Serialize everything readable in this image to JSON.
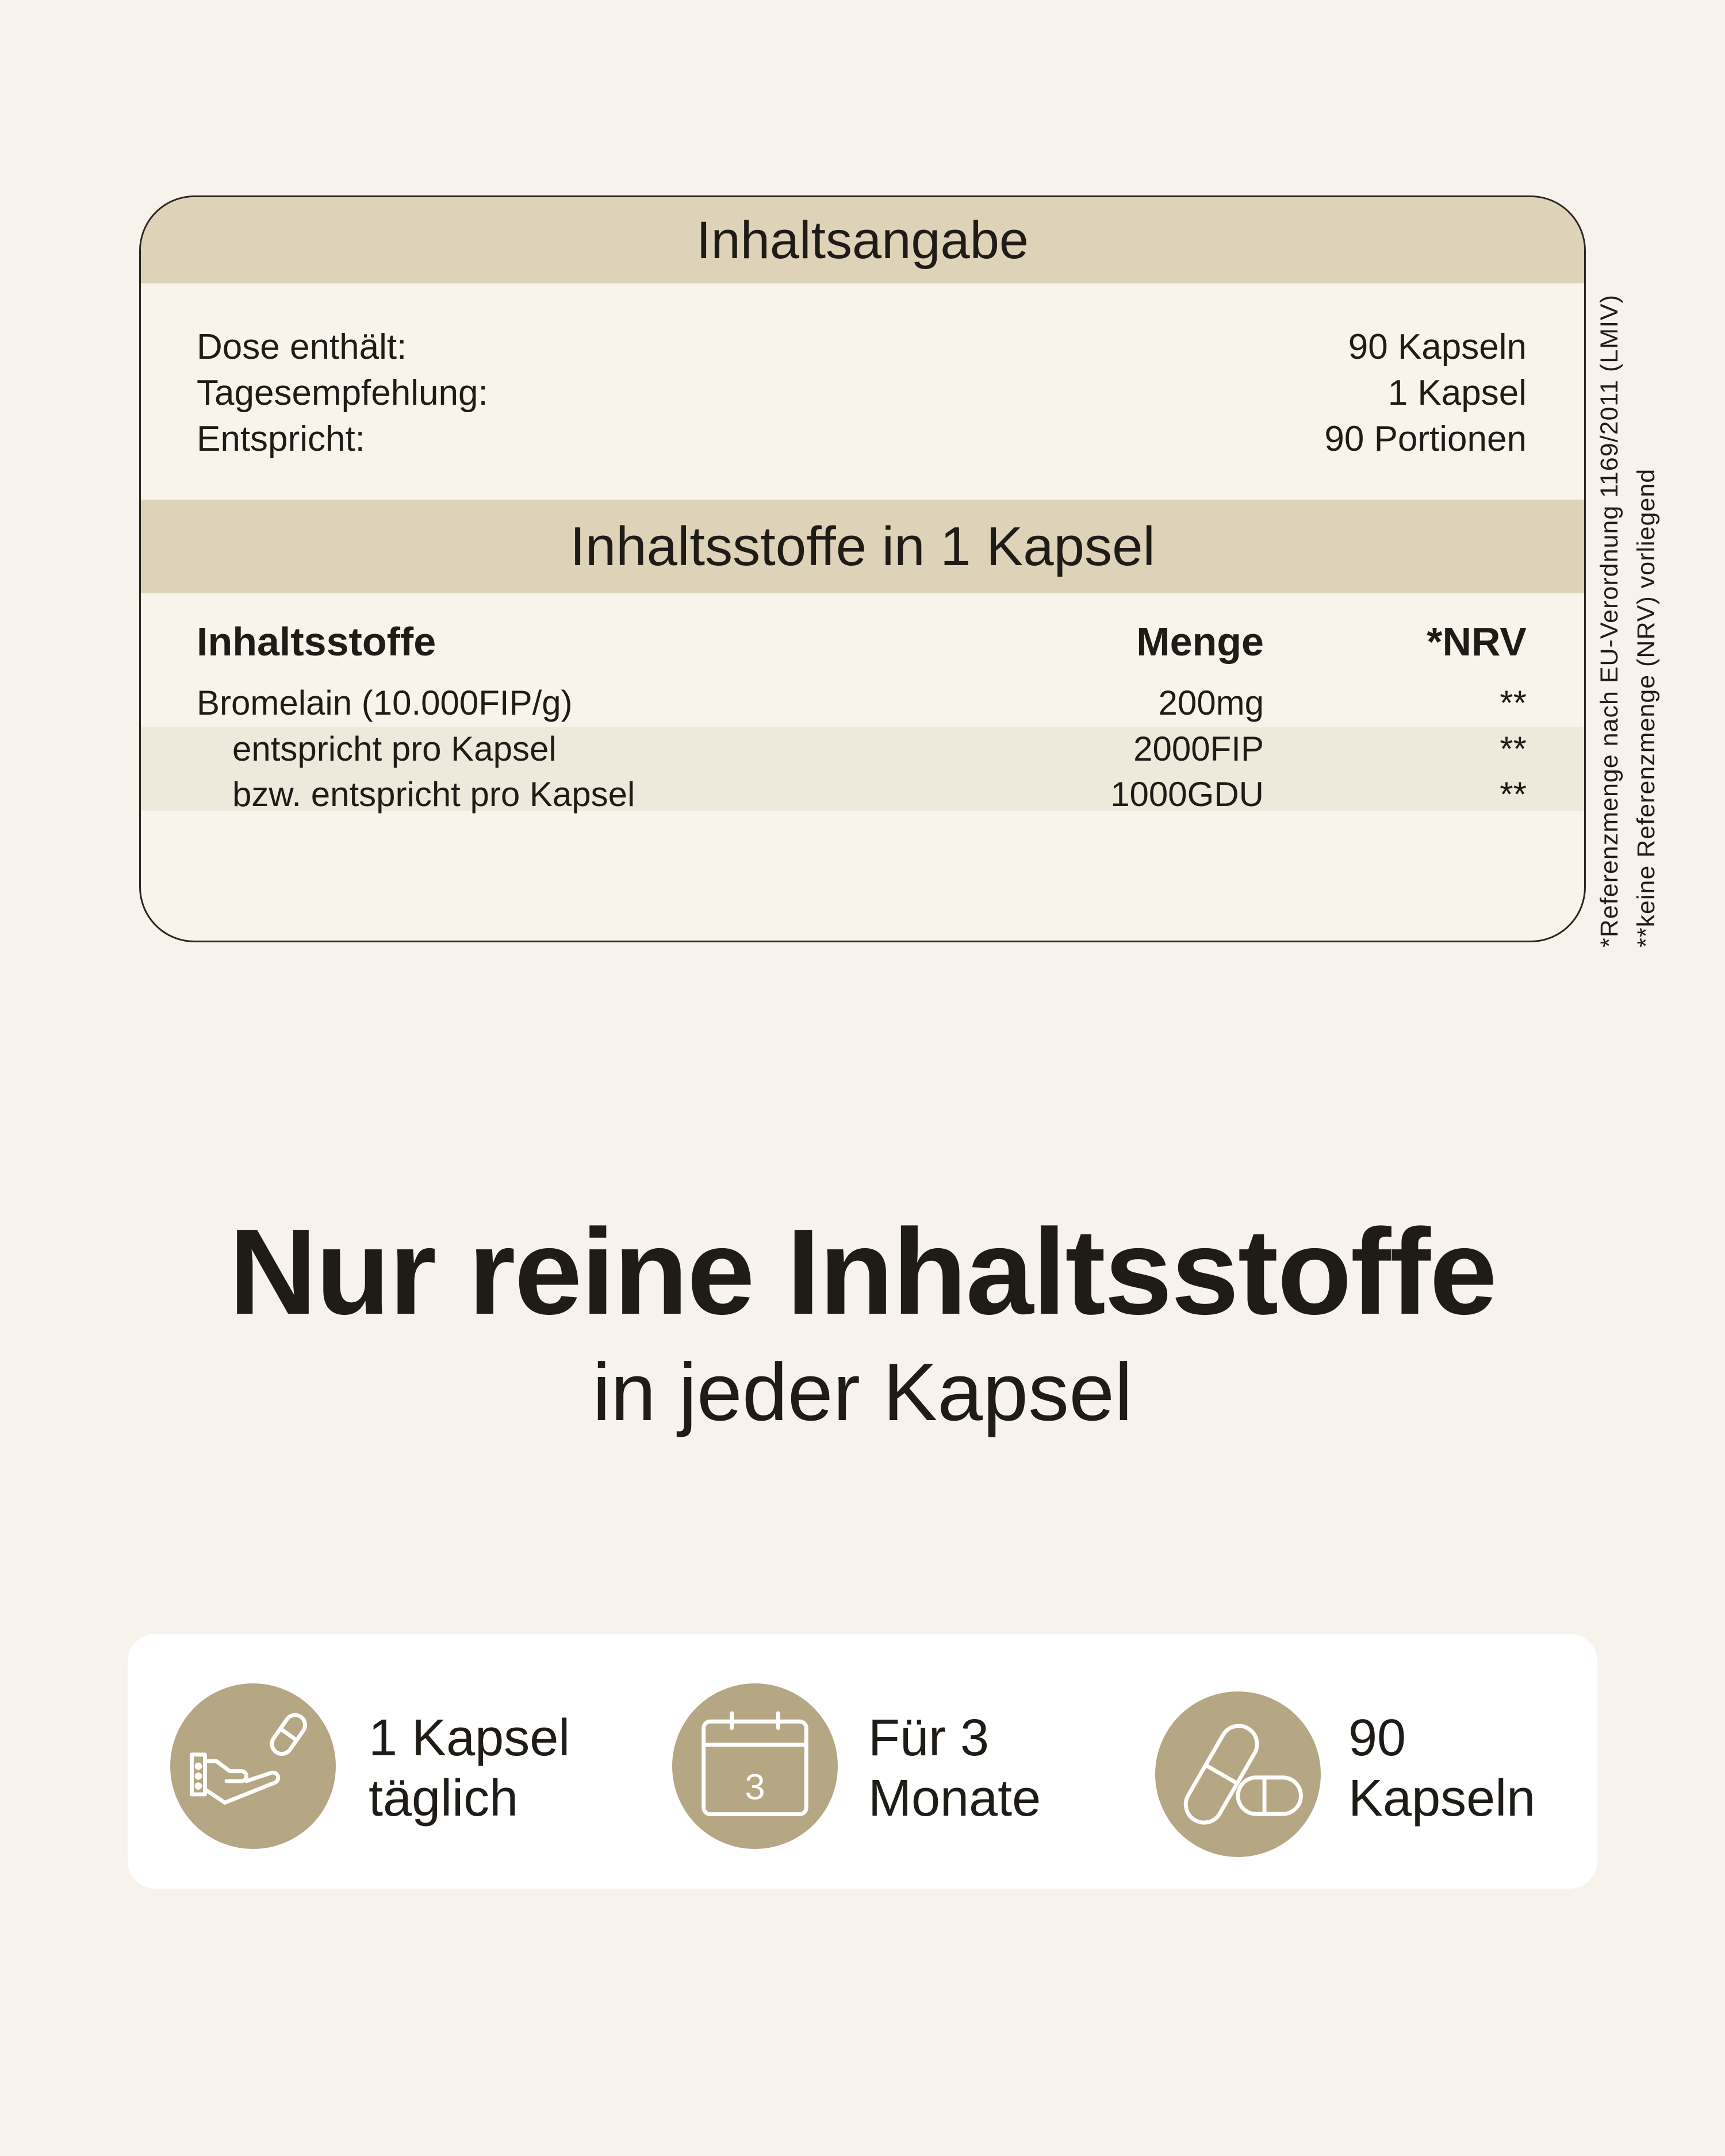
{
  "table": {
    "title": "Inhaltsangabe",
    "summary": [
      {
        "label": "Dose enthält:",
        "value": "90 Kapseln"
      },
      {
        "label": "Tagesempfehlung:",
        "value": "1 Kapsel"
      },
      {
        "label": "Entspricht:",
        "value": "90 Portionen"
      }
    ],
    "section_title": "Inhaltsstoffe in 1 Kapsel",
    "columns": [
      "Inhaltsstoffe",
      "Menge",
      "*NRV"
    ],
    "rows": [
      {
        "name": "Bromelain (10.000FIP/g)",
        "amount": "200mg",
        "nrv": "**"
      },
      {
        "name": "entspricht pro Kapsel",
        "amount": "2000FIP",
        "nrv": "**"
      },
      {
        "name": "bzw. entspricht pro Kapsel",
        "amount": "1000GDU",
        "nrv": "**"
      }
    ],
    "footnote1": "*Referenzmenge nach EU-Verordnung 1169/2011 (LMIV)",
    "footnote2": "**keine Referenzmenge (NRV) vorliegend"
  },
  "headline": "Nur reine Inhaltsstoffe",
  "subheadline": "in jeder Kapsel",
  "features": [
    {
      "icon": "hand-capsule-icon",
      "line1": "1 Kapsel",
      "line2": "täglich"
    },
    {
      "icon": "calendar-icon",
      "line1": "Für 3",
      "line2": "Monate",
      "calendar_number": "3"
    },
    {
      "icon": "capsules-icon",
      "line1": "90",
      "line2": "Kapseln"
    }
  ],
  "colors": {
    "background": "#f7f3ec",
    "band": "#ded3b8",
    "icon_circle": "#b5a684"
  }
}
